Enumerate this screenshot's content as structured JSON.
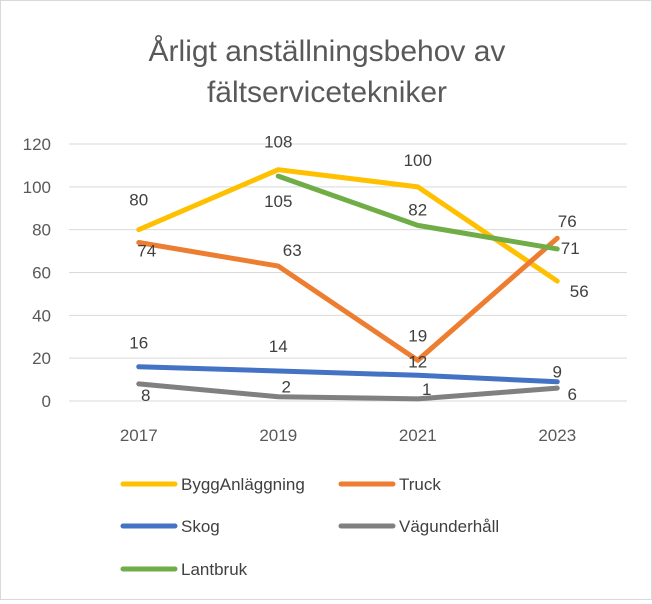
{
  "chart_data": {
    "type": "line",
    "title_lines": [
      "Årligt anställningsbehov av",
      "fältservicetekniker"
    ],
    "categories": [
      "2017",
      "2019",
      "2021",
      "2023"
    ],
    "ylim": [
      0,
      120
    ],
    "yticks": [
      0,
      20,
      40,
      60,
      80,
      100,
      120
    ],
    "grid": true,
    "legend_position": "bottom",
    "series": [
      {
        "name": "ByggAnläggning",
        "color": "#FFC000",
        "values": [
          80,
          108,
          100,
          56
        ]
      },
      {
        "name": "Truck",
        "color": "#ED7D31",
        "values": [
          74,
          63,
          19,
          76
        ]
      },
      {
        "name": "Skog",
        "color": "#4472C4",
        "values": [
          16,
          14,
          12,
          9
        ]
      },
      {
        "name": "Vägunderhåll",
        "color": "#808080",
        "values": [
          8,
          2,
          1,
          6
        ]
      },
      {
        "name": "Lantbruk",
        "color": "#70AD47",
        "values": [
          null,
          105,
          82,
          71
        ]
      }
    ]
  }
}
